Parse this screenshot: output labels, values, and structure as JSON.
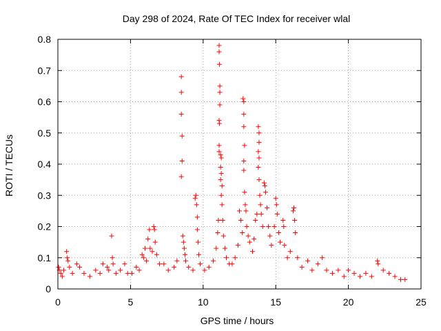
{
  "chart_data": {
    "type": "scatter",
    "title": "Day 298 of 2024, Rate Of TEC Index for receiver wlal",
    "xlabel": "GPS time / hours",
    "ylabel": "ROTI / TECUs",
    "xlim": [
      0,
      25
    ],
    "ylim": [
      0,
      0.8
    ],
    "xticks": [
      "0",
      "5",
      "10",
      "15",
      "20",
      "25"
    ],
    "yticks": [
      "0",
      "0.1",
      "0.2",
      "0.3",
      "0.4",
      "0.5",
      "0.6",
      "0.7",
      "0.8"
    ],
    "grid": true,
    "marker": "+",
    "color": "#ff0000",
    "series": [
      {
        "name": "ROTI",
        "points": [
          [
            0.05,
            0.07
          ],
          [
            0.1,
            0.06
          ],
          [
            0.2,
            0.05
          ],
          [
            0.3,
            0.04
          ],
          [
            0.4,
            0.06
          ],
          [
            0.6,
            0.12
          ],
          [
            0.65,
            0.1
          ],
          [
            0.7,
            0.09
          ],
          [
            0.8,
            0.07
          ],
          [
            1.0,
            0.05
          ],
          [
            1.3,
            0.08
          ],
          [
            1.5,
            0.07
          ],
          [
            1.8,
            0.05
          ],
          [
            2.2,
            0.04
          ],
          [
            2.6,
            0.06
          ],
          [
            2.9,
            0.05
          ],
          [
            3.1,
            0.08
          ],
          [
            3.4,
            0.07
          ],
          [
            3.5,
            0.06
          ],
          [
            3.7,
            0.17
          ],
          [
            3.75,
            0.1
          ],
          [
            3.8,
            0.08
          ],
          [
            4.0,
            0.05
          ],
          [
            4.3,
            0.06
          ],
          [
            4.6,
            0.08
          ],
          [
            4.8,
            0.05
          ],
          [
            5.1,
            0.05
          ],
          [
            5.4,
            0.07
          ],
          [
            5.6,
            0.06
          ],
          [
            5.8,
            0.11
          ],
          [
            5.9,
            0.1
          ],
          [
            6.0,
            0.13
          ],
          [
            6.1,
            0.09
          ],
          [
            6.2,
            0.16
          ],
          [
            6.3,
            0.19
          ],
          [
            6.35,
            0.13
          ],
          [
            6.5,
            0.12
          ],
          [
            6.6,
            0.2
          ],
          [
            6.65,
            0.19
          ],
          [
            6.7,
            0.15
          ],
          [
            6.8,
            0.11
          ],
          [
            7.0,
            0.08
          ],
          [
            7.3,
            0.08
          ],
          [
            7.6,
            0.06
          ],
          [
            8.0,
            0.07
          ],
          [
            8.2,
            0.09
          ],
          [
            8.5,
            0.68
          ],
          [
            8.5,
            0.63
          ],
          [
            8.5,
            0.56
          ],
          [
            8.55,
            0.49
          ],
          [
            8.55,
            0.41
          ],
          [
            8.5,
            0.36
          ],
          [
            8.6,
            0.17
          ],
          [
            8.65,
            0.15
          ],
          [
            8.7,
            0.13
          ],
          [
            8.75,
            0.11
          ],
          [
            8.8,
            0.09
          ],
          [
            9.0,
            0.07
          ],
          [
            9.3,
            0.06
          ],
          [
            9.45,
            0.29
          ],
          [
            9.5,
            0.3
          ],
          [
            9.55,
            0.27
          ],
          [
            9.6,
            0.23
          ],
          [
            9.6,
            0.19
          ],
          [
            9.65,
            0.15
          ],
          [
            9.7,
            0.11
          ],
          [
            9.8,
            0.08
          ],
          [
            10.1,
            0.06
          ],
          [
            10.4,
            0.07
          ],
          [
            10.7,
            0.09
          ],
          [
            10.9,
            0.13
          ],
          [
            11.0,
            0.18
          ],
          [
            11.05,
            0.22
          ],
          [
            11.1,
            0.78
          ],
          [
            11.1,
            0.76
          ],
          [
            11.12,
            0.72
          ],
          [
            11.15,
            0.65
          ],
          [
            11.15,
            0.63
          ],
          [
            11.15,
            0.59
          ],
          [
            11.1,
            0.54
          ],
          [
            11.12,
            0.53
          ],
          [
            11.1,
            0.46
          ],
          [
            11.1,
            0.44
          ],
          [
            11.2,
            0.43
          ],
          [
            11.25,
            0.42
          ],
          [
            11.2,
            0.39
          ],
          [
            11.25,
            0.37
          ],
          [
            11.2,
            0.35
          ],
          [
            11.3,
            0.33
          ],
          [
            11.25,
            0.3
          ],
          [
            11.3,
            0.27
          ],
          [
            11.35,
            0.22
          ],
          [
            11.4,
            0.17
          ],
          [
            11.5,
            0.13
          ],
          [
            11.6,
            0.1
          ],
          [
            11.8,
            0.08
          ],
          [
            12.0,
            0.08
          ],
          [
            12.2,
            0.1
          ],
          [
            12.4,
            0.14
          ],
          [
            12.5,
            0.25
          ],
          [
            12.6,
            0.22
          ],
          [
            12.7,
            0.18
          ],
          [
            12.75,
            0.61
          ],
          [
            12.8,
            0.6
          ],
          [
            12.8,
            0.56
          ],
          [
            12.8,
            0.52
          ],
          [
            12.85,
            0.46
          ],
          [
            12.8,
            0.41
          ],
          [
            12.8,
            0.38
          ],
          [
            12.85,
            0.31
          ],
          [
            12.9,
            0.27
          ],
          [
            12.95,
            0.25
          ],
          [
            13.0,
            0.2
          ],
          [
            13.1,
            0.17
          ],
          [
            13.2,
            0.15
          ],
          [
            13.4,
            0.12
          ],
          [
            13.5,
            0.16
          ],
          [
            13.6,
            0.22
          ],
          [
            13.7,
            0.24
          ],
          [
            13.8,
            0.52
          ],
          [
            13.85,
            0.5
          ],
          [
            13.85,
            0.47
          ],
          [
            13.8,
            0.44
          ],
          [
            13.85,
            0.42
          ],
          [
            13.8,
            0.39
          ],
          [
            13.85,
            0.35
          ],
          [
            13.9,
            0.3
          ],
          [
            13.95,
            0.27
          ],
          [
            14.0,
            0.24
          ],
          [
            14.1,
            0.2
          ],
          [
            14.2,
            0.34
          ],
          [
            14.25,
            0.33
          ],
          [
            14.3,
            0.31
          ],
          [
            14.4,
            0.26
          ],
          [
            14.5,
            0.2
          ],
          [
            14.6,
            0.17
          ],
          [
            14.7,
            0.14
          ],
          [
            14.9,
            0.2
          ],
          [
            15.0,
            0.29
          ],
          [
            15.05,
            0.27
          ],
          [
            15.1,
            0.24
          ],
          [
            15.2,
            0.18
          ],
          [
            15.3,
            0.15
          ],
          [
            15.5,
            0.22
          ],
          [
            15.55,
            0.2
          ],
          [
            15.6,
            0.14
          ],
          [
            15.8,
            0.1
          ],
          [
            16.0,
            0.12
          ],
          [
            16.2,
            0.25
          ],
          [
            16.25,
            0.26
          ],
          [
            16.3,
            0.22
          ],
          [
            16.35,
            0.18
          ],
          [
            16.5,
            0.1
          ],
          [
            16.8,
            0.07
          ],
          [
            17.2,
            0.09
          ],
          [
            17.5,
            0.06
          ],
          [
            17.9,
            0.08
          ],
          [
            18.2,
            0.1
          ],
          [
            18.5,
            0.06
          ],
          [
            18.9,
            0.05
          ],
          [
            19.3,
            0.06
          ],
          [
            19.7,
            0.04
          ],
          [
            20.0,
            0.06
          ],
          [
            20.4,
            0.05
          ],
          [
            20.8,
            0.04
          ],
          [
            21.2,
            0.05
          ],
          [
            21.6,
            0.04
          ],
          [
            22.0,
            0.09
          ],
          [
            22.05,
            0.08
          ],
          [
            22.4,
            0.06
          ],
          [
            22.8,
            0.05
          ],
          [
            23.2,
            0.04
          ],
          [
            23.6,
            0.03
          ],
          [
            23.9,
            0.03
          ]
        ]
      }
    ]
  }
}
